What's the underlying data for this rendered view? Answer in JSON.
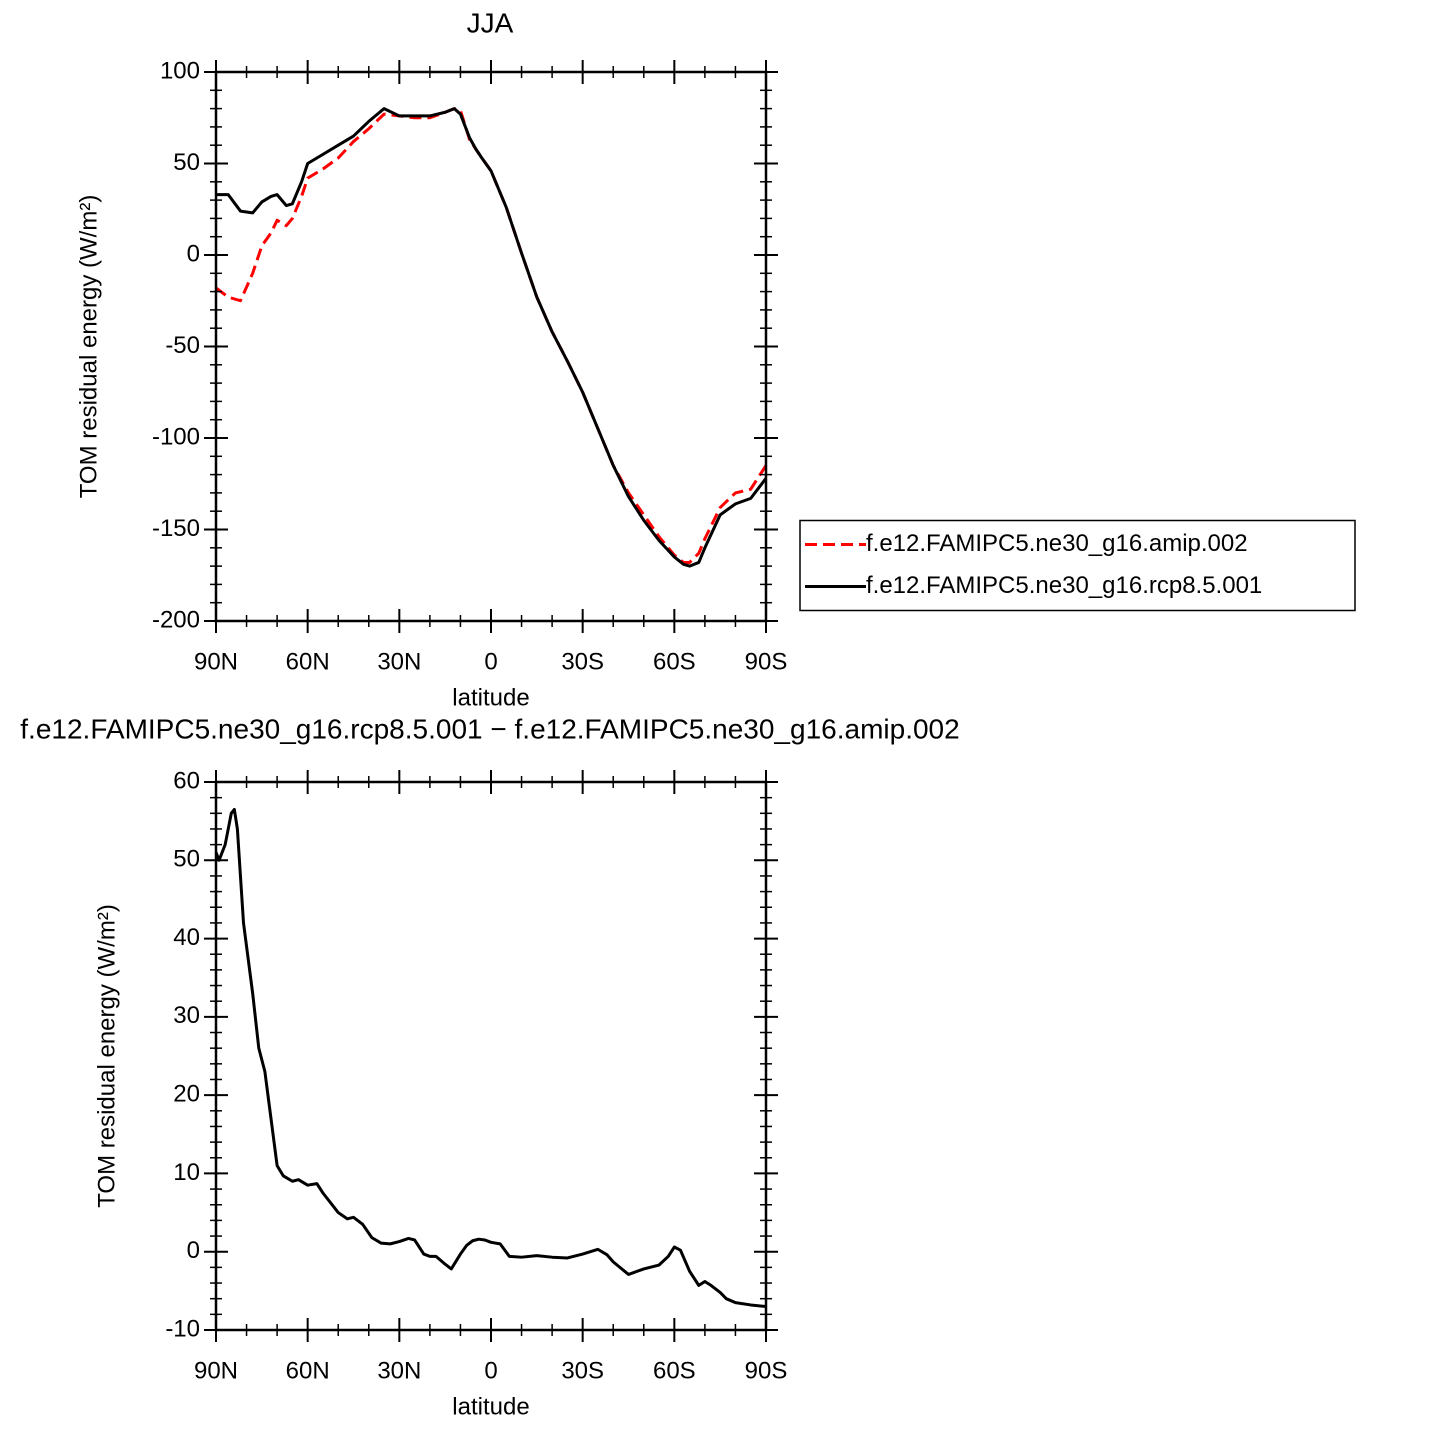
{
  "chart_data": [
    {
      "type": "line",
      "title": "JJA",
      "xlabel": "latitude",
      "ylabel": "TOM residual energy (W/m²)",
      "xlim": [
        90,
        -90
      ],
      "xticks": [
        {
          "value": 90,
          "label": "90N"
        },
        {
          "value": 60,
          "label": "60N"
        },
        {
          "value": 30,
          "label": "30N"
        },
        0,
        {
          "value": -30,
          "label": "30S"
        },
        {
          "value": -60,
          "label": "60S"
        },
        {
          "value": -90,
          "label": "90S"
        }
      ],
      "ylim": [
        -200,
        100
      ],
      "yticks": [
        100,
        50,
        0,
        -50,
        -100,
        -150,
        -200
      ],
      "legend": "right",
      "x": [
        90,
        86,
        82,
        78,
        75,
        72,
        70,
        67,
        65,
        62,
        60,
        55,
        50,
        45,
        40,
        35,
        30,
        25,
        20,
        15,
        12,
        10,
        7,
        5,
        3,
        0,
        -5,
        -10,
        -15,
        -20,
        -25,
        -30,
        -35,
        -40,
        -45,
        -50,
        -55,
        -60,
        -63,
        -65,
        -68,
        -70,
        -75,
        -80,
        -85,
        -90
      ],
      "series": [
        {
          "name": "f.e12.FAMIPC5.ne30_g16.amip.002",
          "color": "#ff0000",
          "dashed": true,
          "values": [
            -18,
            -23,
            -25,
            -10,
            5,
            12,
            19,
            16,
            20,
            32,
            42,
            47,
            53,
            62,
            69,
            77,
            76,
            75,
            75,
            78,
            80,
            79,
            63,
            58,
            53,
            46,
            26,
            1,
            -23,
            -42,
            -58,
            -75,
            -95,
            -115,
            -130,
            -142,
            -154,
            -164,
            -168,
            -168,
            -163,
            -155,
            -138,
            -130,
            -128,
            -115
          ]
        },
        {
          "name": "f.e12.FAMIPC5.ne30_g16.rcp8.5.001",
          "color": "#000000",
          "dashed": false,
          "values": [
            33,
            33,
            24,
            23,
            29,
            32,
            33,
            27,
            28,
            40,
            50,
            55,
            60,
            65,
            73,
            80,
            76,
            76,
            76,
            78,
            80,
            77,
            64,
            58,
            53,
            46,
            26,
            1,
            -23,
            -42,
            -58,
            -75,
            -95,
            -115,
            -132,
            -145,
            -156,
            -165,
            -169,
            -170,
            -168,
            -160,
            -142,
            -136,
            -133,
            -122
          ]
        }
      ]
    },
    {
      "type": "line",
      "title": "f.e12.FAMIPC5.ne30_g16.rcp8.5.001 − f.e12.FAMIPC5.ne30_g16.amip.002",
      "xlabel": "latitude",
      "ylabel": "TOM residual energy (W/m²)",
      "xlim": [
        90,
        -90
      ],
      "xticks": [
        {
          "value": 90,
          "label": "90N"
        },
        {
          "value": 60,
          "label": "60N"
        },
        {
          "value": 30,
          "label": "30N"
        },
        0,
        {
          "value": -30,
          "label": "30S"
        },
        {
          "value": -60,
          "label": "60S"
        },
        {
          "value": -90,
          "label": "90S"
        }
      ],
      "ylim": [
        -10,
        60
      ],
      "yticks": [
        60,
        50,
        40,
        30,
        20,
        10,
        0,
        -10
      ],
      "x": [
        90,
        89,
        87,
        85,
        84,
        83,
        81,
        78,
        76,
        74,
        72,
        70,
        68,
        65,
        63,
        60,
        57,
        55,
        50,
        47,
        45,
        42,
        39,
        36,
        33,
        30,
        27,
        25,
        22,
        20,
        18,
        15,
        13,
        10,
        8,
        6,
        4,
        2,
        0,
        -3,
        -6,
        -10,
        -15,
        -20,
        -25,
        -30,
        -35,
        -38,
        -40,
        -45,
        -50,
        -55,
        -58,
        -60,
        -62,
        -65,
        -68,
        -70,
        -72,
        -75,
        -77,
        -80,
        -85,
        -90
      ],
      "series": [
        {
          "color": "#000000",
          "dashed": false,
          "values": [
            51,
            50,
            52,
            56,
            56.5,
            54,
            42,
            33,
            26,
            23,
            17,
            11,
            9.7,
            9,
            9.2,
            8.5,
            8.7,
            7.5,
            5,
            4.2,
            4.4,
            3.5,
            1.8,
            1.1,
            1,
            1.3,
            1.7,
            1.5,
            -0.3,
            -0.6,
            -0.6,
            -1.6,
            -2.2,
            -0.3,
            0.8,
            1.4,
            1.6,
            1.5,
            1.2,
            1,
            -0.6,
            -0.7,
            -0.5,
            -0.7,
            -0.8,
            -0.3,
            0.3,
            -0.4,
            -1.3,
            -2.9,
            -2.2,
            -1.7,
            -0.6,
            0.6,
            0.2,
            -2.5,
            -4.3,
            -3.8,
            -4.3,
            -5.2,
            -6,
            -6.5,
            -6.8,
            -7
          ]
        }
      ]
    }
  ]
}
